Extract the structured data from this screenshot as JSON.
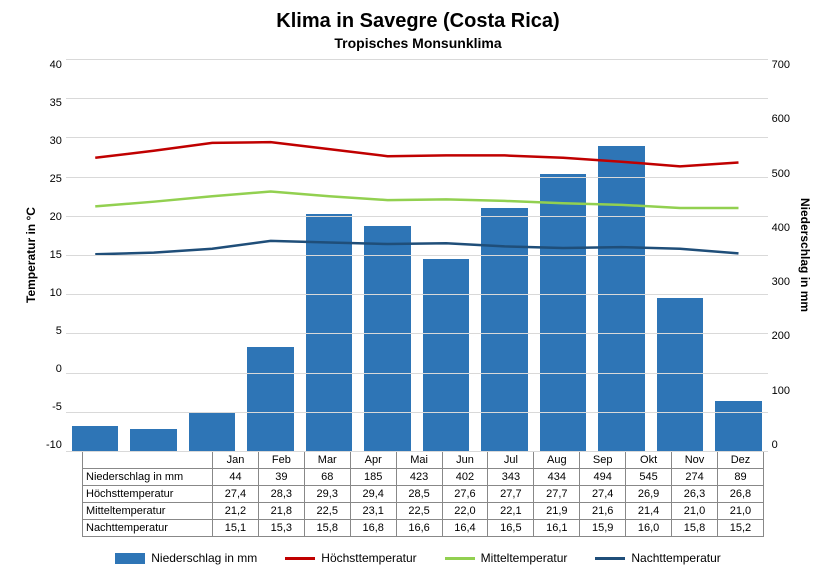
{
  "title": "Klima in Savegre (Costa Rica)",
  "subtitle": "Tropisches Monsunklima",
  "ylabel_left": "Temperatur in °C",
  "ylabel_right": "Niederschlag in mm",
  "months": [
    "Jan",
    "Feb",
    "Mar",
    "Apr",
    "Mai",
    "Jun",
    "Jul",
    "Aug",
    "Sep",
    "Okt",
    "Nov",
    "Dez"
  ],
  "left_axis": {
    "min": -10,
    "max": 40,
    "step": 5,
    "ticks": [
      "40",
      "35",
      "30",
      "25",
      "20",
      "15",
      "10",
      "5",
      "0",
      "-5",
      "-10"
    ]
  },
  "right_axis": {
    "min": 0,
    "max": 700,
    "step": 100,
    "ticks": [
      "700",
      "600",
      "500",
      "400",
      "300",
      "200",
      "100",
      "0"
    ]
  },
  "series": {
    "precip": {
      "label": "Niederschlag in mm",
      "color": "#2e75b6",
      "values": [
        44,
        39,
        68,
        185,
        423,
        402,
        343,
        434,
        494,
        545,
        274,
        89
      ]
    },
    "high": {
      "label": "Höchsttemperatur",
      "color": "#c00000",
      "values": [
        27.4,
        28.3,
        29.3,
        29.4,
        28.5,
        27.6,
        27.7,
        27.7,
        27.4,
        26.9,
        26.3,
        26.8
      ],
      "display": [
        "27,4",
        "28,3",
        "29,3",
        "29,4",
        "28,5",
        "27,6",
        "27,7",
        "27,7",
        "27,4",
        "26,9",
        "26,3",
        "26,8"
      ]
    },
    "mean": {
      "label": "Mitteltemperatur",
      "color": "#92d050",
      "values": [
        21.2,
        21.8,
        22.5,
        23.1,
        22.5,
        22.0,
        22.1,
        21.9,
        21.6,
        21.4,
        21.0,
        21.0
      ],
      "display": [
        "21,2",
        "21,8",
        "22,5",
        "23,1",
        "22,5",
        "22,0",
        "22,1",
        "21,9",
        "21,6",
        "21,4",
        "21,0",
        "21,0"
      ]
    },
    "night": {
      "label": "Nachttemperatur",
      "color": "#1f4e79",
      "values": [
        15.1,
        15.3,
        15.8,
        16.8,
        16.6,
        16.4,
        16.5,
        16.1,
        15.9,
        16.0,
        15.8,
        15.2
      ],
      "display": [
        "15,1",
        "15,3",
        "15,8",
        "16,8",
        "16,6",
        "16,4",
        "16,5",
        "16,1",
        "15,9",
        "16,0",
        "15,8",
        "15,2"
      ]
    }
  },
  "styling": {
    "background": "#ffffff",
    "grid_color": "#d9d9d9",
    "axis_color": "#888888",
    "title_fontsize": 20,
    "subtitle_fontsize": 14,
    "label_fontsize": 12,
    "tick_fontsize": 11,
    "bar_width_ratio": 0.7,
    "line_width": 2.5
  }
}
